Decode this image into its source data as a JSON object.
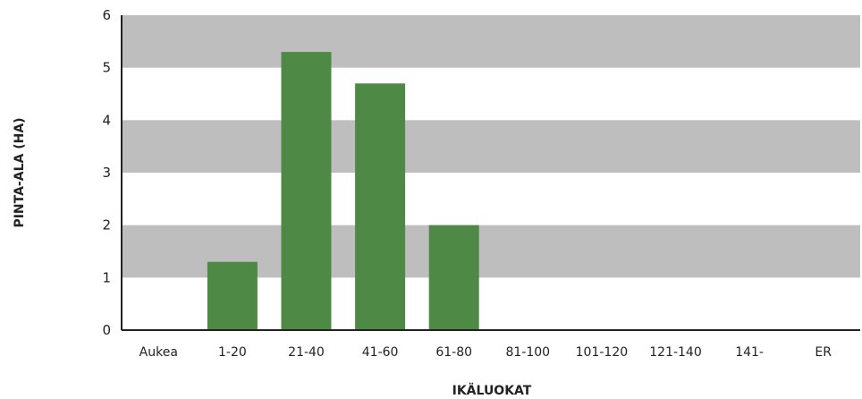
{
  "chart_data": {
    "type": "bar",
    "title": "",
    "xlabel": "IKÄLUOKAT",
    "ylabel": "PINTA-ALA (HA)",
    "categories": [
      "Aukea",
      "1-20",
      "21-40",
      "41-60",
      "61-80",
      "81-100",
      "101-120",
      "121-140",
      "141-",
      "ER"
    ],
    "values": [
      0,
      1.3,
      5.3,
      4.7,
      2.0,
      0,
      0,
      0,
      0,
      0
    ],
    "ylim": [
      0,
      6
    ],
    "yticks": [
      "0",
      "1",
      "2",
      "3",
      "4",
      "5",
      "6"
    ],
    "grid": "alternating horizontal bands",
    "legend": "none",
    "colors": {
      "bar": "#4e8a45",
      "band": "#bebebe",
      "axis": "#222222"
    }
  }
}
